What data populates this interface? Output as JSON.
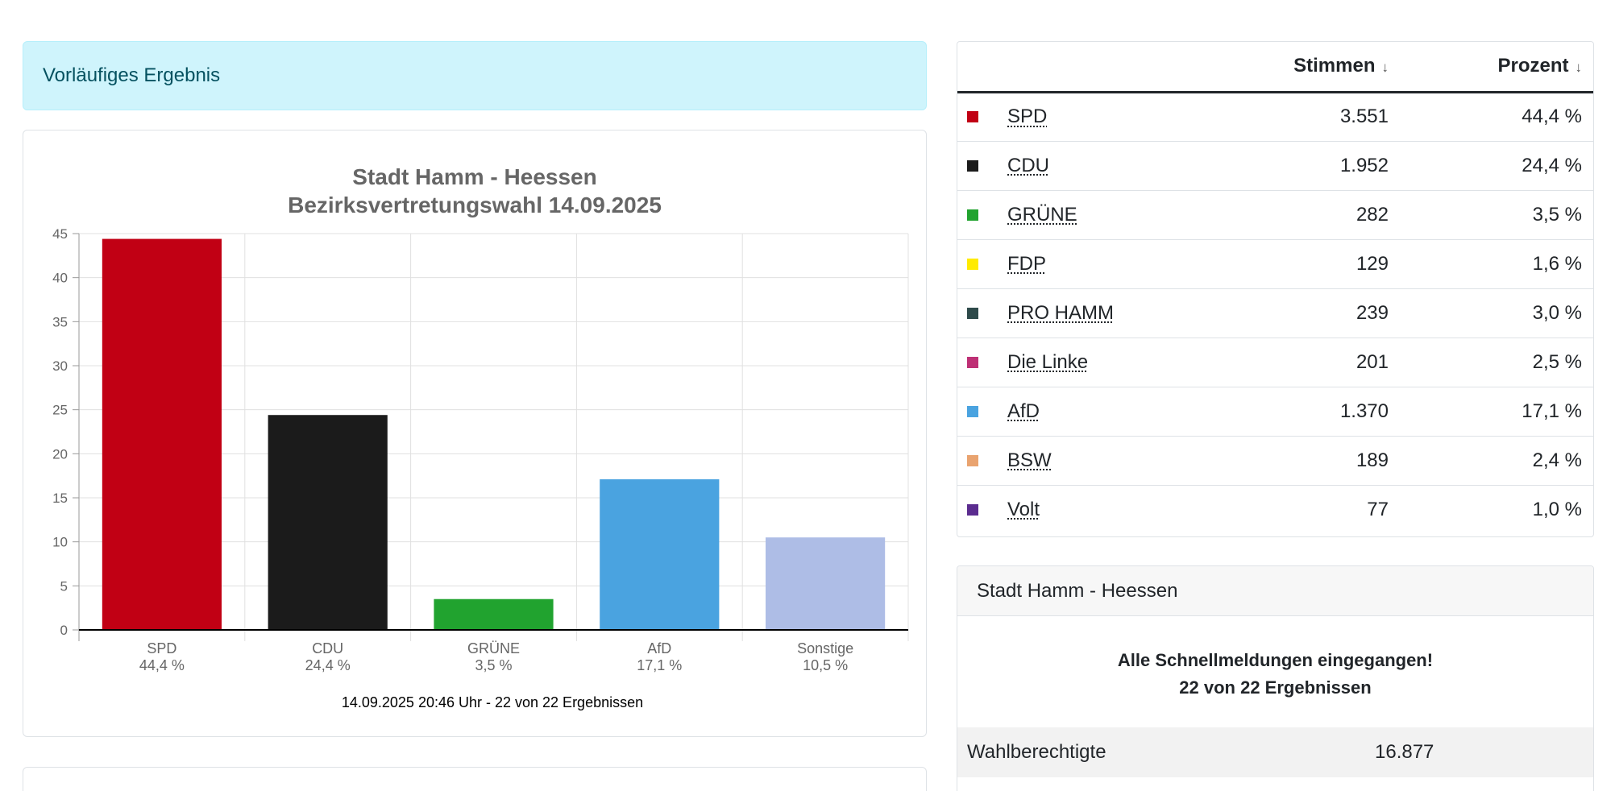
{
  "alert": {
    "text": "Vorläufiges Ergebnis"
  },
  "chart_data": {
    "type": "bar",
    "title": [
      "Stadt Hamm - Heessen",
      "Bezirksvertretungswahl 14.09.2025"
    ],
    "categories": [
      "SPD",
      "CDU",
      "GRÜNE",
      "AfD",
      "Sonstige"
    ],
    "values": [
      44.4,
      24.4,
      3.5,
      17.1,
      10.5
    ],
    "value_labels": [
      "44,4 %",
      "24,4 %",
      "3,5 %",
      "17,1 %",
      "10,5 %"
    ],
    "colors": [
      "#c10014",
      "#1b1b1b",
      "#21a32f",
      "#4aa3e0",
      "#aebde6"
    ],
    "ylim": [
      0,
      45
    ],
    "yticks": [
      0,
      5,
      10,
      15,
      20,
      25,
      30,
      35,
      40,
      45
    ],
    "grid": true,
    "footer": "14.09.2025 20:46 Uhr - 22 von 22 Ergebnissen"
  },
  "results": {
    "headers": {
      "votes": "Stimmen",
      "percent": "Prozent",
      "sort_icon": "↓"
    },
    "rows": [
      {
        "party": "SPD",
        "votes": "3.551",
        "percent": "44,4 %",
        "color": "#c10014"
      },
      {
        "party": "CDU",
        "votes": "1.952",
        "percent": "24,4 %",
        "color": "#1b1b1b"
      },
      {
        "party": "GRÜNE",
        "votes": "282",
        "percent": "3,5 %",
        "color": "#21a32f"
      },
      {
        "party": "FDP",
        "votes": "129",
        "percent": "1,6 %",
        "color": "#ffeb00"
      },
      {
        "party": "PRO HAMM",
        "votes": "239",
        "percent": "3,0 %",
        "color": "#2e4a4a"
      },
      {
        "party": "Die Linke",
        "votes": "201",
        "percent": "2,5 %",
        "color": "#be3075"
      },
      {
        "party": "AfD",
        "votes": "1.370",
        "percent": "17,1 %",
        "color": "#4aa3e0"
      },
      {
        "party": "BSW",
        "votes": "189",
        "percent": "2,4 %",
        "color": "#e9a36f"
      },
      {
        "party": "Volt",
        "votes": "77",
        "percent": "1,0 %",
        "color": "#5b2c8f"
      }
    ]
  },
  "status": {
    "header": "Stadt Hamm - Heessen",
    "message_line1": "Alle Schnellmeldungen eingegangen!",
    "message_line2": "22 von 22 Ergebnissen",
    "stats": [
      {
        "label": "Wahlberechtigte",
        "value": "16.877"
      }
    ]
  }
}
